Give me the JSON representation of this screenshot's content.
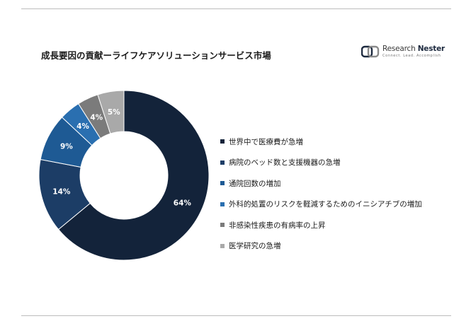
{
  "header": {
    "title": "成長要因の貢献ーライフケアソリューションサービス市場"
  },
  "logo": {
    "name_part1": "Research",
    "name_part2": "Nester",
    "tagline": "Connect. Lead. Accomplish",
    "icon": "research-nester-logo-icon"
  },
  "chart_data": {
    "type": "pie",
    "variant": "donut",
    "categories": [
      "世界中で医療費が急増",
      "病院のベッド数と支援機器の急増",
      "通院回数の増加",
      "外科的処置のリスクを軽減するためのイニシアチブの増加",
      "非感染性疾患の有病率の上昇",
      "医学研究の急増"
    ],
    "values": [
      64,
      14,
      9,
      4,
      4,
      5
    ],
    "labels": [
      "64%",
      "14%",
      "9%",
      "4%",
      "4%",
      "5%"
    ],
    "colors": [
      "#13233a",
      "#1c3d66",
      "#1e5a94",
      "#2a6fb0",
      "#7b7b7b",
      "#a9a9a9"
    ],
    "legend_position": "right"
  }
}
